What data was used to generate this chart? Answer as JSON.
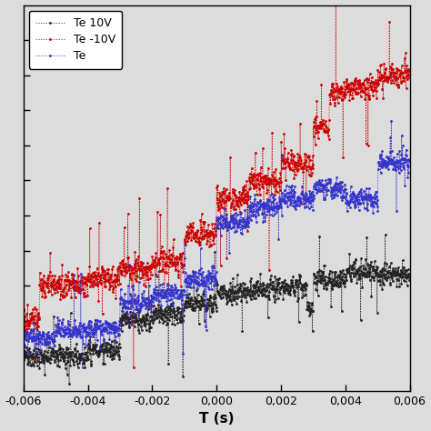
{
  "title": "",
  "xlabel": "T (s)",
  "ylabel": "",
  "xlim": [
    -0.006,
    0.006
  ],
  "x_tick_positions": [
    -0.006,
    -0.004,
    -0.002,
    0.0,
    0.002,
    0.004,
    0.006
  ],
  "x_tick_labels": [
    "-0,006",
    "-0,004",
    "-0,002",
    "0,000",
    "0,002",
    "0,004",
    "0,006"
  ],
  "background_color": "#e8e8e8",
  "plot_bg_color": "#e8e8e8",
  "legend_entries": [
    "Te 10V",
    "Te -10V",
    "Te"
  ],
  "colors": {
    "black": "#222222",
    "red": "#cc0000",
    "blue": "#3333cc"
  },
  "seed": 7
}
